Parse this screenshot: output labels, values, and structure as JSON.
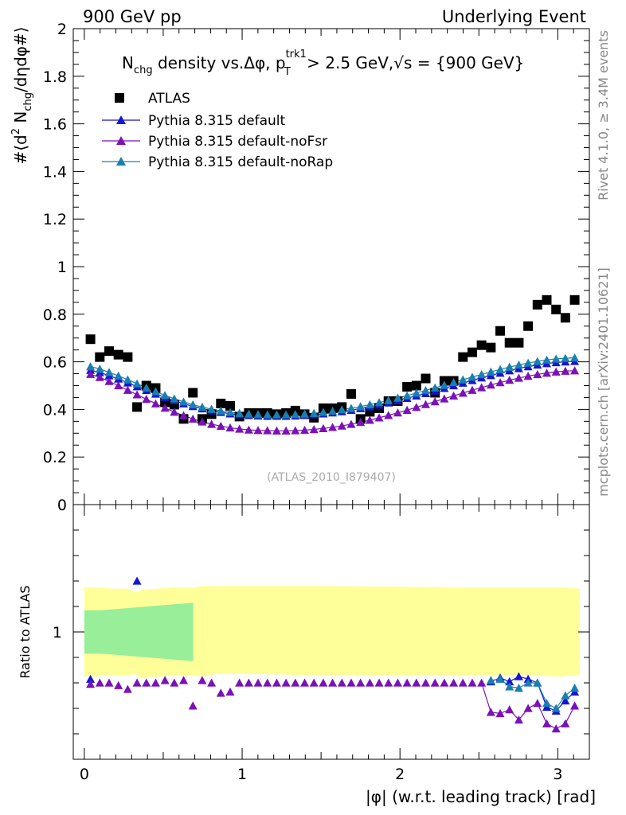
{
  "header": {
    "left": "900 GeV pp",
    "right": "Underlying Event"
  },
  "side_labels": {
    "rivet": "Rivet 4.1.0, ≥ 3.4M events",
    "mcplots": "mcplots.cern.ch [arXiv:2401.10621]"
  },
  "watermark": "(ATLAS_2010_I879407)",
  "chart_data": [
    {
      "type": "scatter",
      "title": "N_chg density vs. Δφ, p_T^trk1 > 2.5 GeV, √s = {900 GeV}",
      "title_parts": {
        "n": "N",
        "chg": "chg",
        "mid": " density vs.",
        "dphi": "Δφ",
        "comma": ", p",
        "sup": "trk1",
        "sub": "T",
        "cut": " > 2.5 GeV,",
        "sqrt": "√",
        "s_eq": "s = {900 GeV}"
      },
      "ylabel": "#⟨d² N_chg/dηdφ#⟩",
      "ylabel_parts": {
        "a": "#⟨d",
        "sup2": "2",
        "b": " N",
        "chg": "chg",
        "c": "/dηdφ#⟩"
      },
      "ylim": [
        0,
        2
      ],
      "yticks": [
        0,
        0.2,
        0.4,
        0.6,
        0.8,
        1,
        1.2,
        1.4,
        1.6,
        1.8,
        2
      ],
      "ytick_labels": [
        "0",
        "0.2",
        "0.4",
        "0.6",
        "0.8",
        "1",
        "1.2",
        "1.4",
        "1.6",
        "1.8",
        "2"
      ],
      "xlim": [
        -0.07,
        3.2
      ],
      "xticks": [
        0,
        1,
        2,
        3
      ],
      "x": [
        0.039,
        0.098,
        0.157,
        0.216,
        0.275,
        0.334,
        0.393,
        0.452,
        0.511,
        0.57,
        0.629,
        0.688,
        0.747,
        0.806,
        0.865,
        0.924,
        0.983,
        1.042,
        1.101,
        1.16,
        1.219,
        1.278,
        1.337,
        1.396,
        1.455,
        1.514,
        1.573,
        1.632,
        1.691,
        1.75,
        1.809,
        1.868,
        1.927,
        1.986,
        2.045,
        2.104,
        2.163,
        2.222,
        2.281,
        2.34,
        2.399,
        2.458,
        2.517,
        2.576,
        2.635,
        2.694,
        2.753,
        2.812,
        2.871,
        2.93,
        2.989,
        3.048,
        3.107
      ],
      "legend": [
        "ATLAS",
        "Pythia 8.315 default",
        "Pythia 8.315 default-noFsr",
        "Pythia 8.315 default-noRap"
      ],
      "series": [
        {
          "name": "ATLAS",
          "color": "#000000",
          "marker": "square",
          "values": [
            0.695,
            0.62,
            0.645,
            0.63,
            0.62,
            0.41,
            0.5,
            0.49,
            0.43,
            0.42,
            0.36,
            0.47,
            0.36,
            0.38,
            0.425,
            0.415,
            0.37,
            0.385,
            0.385,
            0.385,
            0.38,
            0.385,
            0.395,
            0.38,
            0.365,
            0.405,
            0.405,
            0.41,
            0.465,
            0.36,
            0.39,
            0.405,
            0.435,
            0.435,
            0.495,
            0.5,
            0.53,
            0.47,
            0.52,
            0.52,
            0.62,
            0.64,
            0.67,
            0.66,
            0.73,
            0.68,
            0.68,
            0.75,
            0.84,
            0.86,
            0.82,
            0.785,
            0.86
          ]
        },
        {
          "name": "Pythia 8.315 default",
          "color": "#1515d2",
          "marker": "triangle",
          "values": [
            0.565,
            0.555,
            0.542,
            0.528,
            0.512,
            0.496,
            0.48,
            0.465,
            0.45,
            0.437,
            0.424,
            0.413,
            0.403,
            0.395,
            0.388,
            0.382,
            0.378,
            0.375,
            0.373,
            0.372,
            0.372,
            0.372,
            0.373,
            0.375,
            0.378,
            0.382,
            0.386,
            0.391,
            0.397,
            0.404,
            0.411,
            0.419,
            0.428,
            0.437,
            0.447,
            0.457,
            0.467,
            0.478,
            0.489,
            0.5,
            0.511,
            0.522,
            0.533,
            0.543,
            0.553,
            0.563,
            0.572,
            0.58,
            0.587,
            0.593,
            0.597,
            0.6,
            0.602
          ]
        },
        {
          "name": "Pythia 8.315 default-noFsr",
          "color": "#7a12b8",
          "marker": "triangle",
          "values": [
            0.548,
            0.535,
            0.518,
            0.5,
            0.481,
            0.462,
            0.443,
            0.424,
            0.406,
            0.389,
            0.374,
            0.36,
            0.348,
            0.338,
            0.33,
            0.323,
            0.318,
            0.314,
            0.312,
            0.311,
            0.31,
            0.31,
            0.311,
            0.313,
            0.316,
            0.32,
            0.325,
            0.331,
            0.338,
            0.346,
            0.355,
            0.365,
            0.375,
            0.386,
            0.397,
            0.409,
            0.421,
            0.433,
            0.445,
            0.457,
            0.469,
            0.481,
            0.492,
            0.503,
            0.513,
            0.523,
            0.532,
            0.54,
            0.547,
            0.553,
            0.558,
            0.561,
            0.563
          ]
        },
        {
          "name": "Pythia 8.315 default-noRap",
          "color": "#1a7fb0",
          "marker": "triangle",
          "values": [
            0.58,
            0.57,
            0.556,
            0.541,
            0.525,
            0.508,
            0.491,
            0.475,
            0.459,
            0.445,
            0.432,
            0.42,
            0.41,
            0.401,
            0.394,
            0.388,
            0.384,
            0.381,
            0.379,
            0.378,
            0.378,
            0.378,
            0.379,
            0.381,
            0.384,
            0.388,
            0.393,
            0.399,
            0.405,
            0.412,
            0.42,
            0.429,
            0.438,
            0.448,
            0.458,
            0.469,
            0.48,
            0.491,
            0.502,
            0.514,
            0.525,
            0.536,
            0.547,
            0.558,
            0.568,
            0.578,
            0.587,
            0.595,
            0.602,
            0.608,
            0.612,
            0.615,
            0.617
          ]
        }
      ]
    },
    {
      "type": "scatter",
      "title": "",
      "ylabel": "Ratio to ATLAS",
      "xlabel": "|φ| (w.r.t. leading track) [rad]",
      "ylim": [
        0.5,
        1.5
      ],
      "yticks": [
        1
      ],
      "ytick_labels": [
        "1"
      ],
      "xlim": [
        -0.07,
        3.2
      ],
      "xticks": [
        0,
        1,
        2,
        3
      ],
      "xtick_labels": [
        "0",
        "1",
        "2",
        "3"
      ],
      "bands": [
        {
          "name": "ATLAS total uncertainty",
          "color": "#ffff99",
          "x": [
            0.0,
            0.04,
            0.08,
            0.16,
            0.28,
            0.32,
            0.36,
            0.45,
            0.6,
            0.7,
            0.75,
            0.83,
            1.0,
            1.5,
            2.0,
            2.5,
            2.8,
            3.0,
            3.14
          ],
          "lo": [
            0.825,
            0.825,
            0.825,
            0.83,
            0.83,
            0.835,
            0.82,
            0.825,
            0.83,
            0.83,
            0.825,
            0.835,
            0.835,
            0.83,
            0.83,
            0.83,
            0.83,
            0.825,
            0.83
          ],
          "hi": [
            1.175,
            1.175,
            1.175,
            1.17,
            1.17,
            1.155,
            1.165,
            1.17,
            1.175,
            1.175,
            1.18,
            1.18,
            1.18,
            1.18,
            1.178,
            1.175,
            1.175,
            1.175,
            1.17
          ]
        },
        {
          "name": "ATLAS statistical uncertainty",
          "color": "#99ee99",
          "x": [
            0.0,
            0.1,
            0.2,
            0.3,
            0.4,
            0.5,
            0.6,
            0.69
          ],
          "lo": [
            0.915,
            0.915,
            0.91,
            0.905,
            0.9,
            0.895,
            0.89,
            0.885
          ],
          "hi": [
            1.085,
            1.085,
            1.09,
            1.095,
            1.1,
            1.105,
            1.11,
            1.115
          ]
        }
      ],
      "series": [
        {
          "name": "Pythia 8.315 default / ATLAS",
          "color": "#1515d2",
          "x": [
            0.039,
            0.334,
            2.576,
            2.635,
            2.694,
            2.753,
            2.812,
            2.871,
            2.93,
            2.989,
            3.048,
            3.107
          ],
          "values": [
            0.815,
            1.2,
            0.805,
            0.82,
            0.805,
            0.825,
            0.815,
            0.8,
            0.705,
            0.69,
            0.73,
            0.765
          ]
        },
        {
          "name": "Pythia 8.315 default-noFsr / ATLAS",
          "color": "#7a12b8",
          "x": [
            0.039,
            0.098,
            0.157,
            0.216,
            0.275,
            0.334,
            0.393,
            0.452,
            0.511,
            0.57,
            0.629,
            0.688,
            0.747,
            0.806,
            0.865,
            0.924,
            0.983,
            1.042,
            1.101,
            1.16,
            1.219,
            1.278,
            1.337,
            1.396,
            1.455,
            1.514,
            1.573,
            1.632,
            1.691,
            1.75,
            1.809,
            1.868,
            1.927,
            1.986,
            2.045,
            2.104,
            2.163,
            2.222,
            2.281,
            2.34,
            2.399,
            2.458,
            2.517,
            2.576,
            2.635,
            2.694,
            2.753,
            2.812,
            2.871,
            2.93,
            2.989,
            3.048,
            3.107
          ],
          "values": [
            0.795,
            0.8,
            0.8,
            0.79,
            0.775,
            0.8,
            0.8,
            0.8,
            0.81,
            0.8,
            0.81,
            0.71,
            0.81,
            0.8,
            0.76,
            0.765,
            0.8,
            0.8,
            0.8,
            0.8,
            0.8,
            0.8,
            0.8,
            0.8,
            0.8,
            0.8,
            0.8,
            0.8,
            0.8,
            0.8,
            0.8,
            0.8,
            0.8,
            0.8,
            0.8,
            0.8,
            0.8,
            0.8,
            0.8,
            0.8,
            0.8,
            0.8,
            0.8,
            0.685,
            0.68,
            0.695,
            0.655,
            0.7,
            0.72,
            0.64,
            0.62,
            0.64,
            0.71
          ]
        },
        {
          "name": "Pythia 8.315 default-noRap / ATLAS",
          "color": "#1a7fb0",
          "x": [
            2.576,
            2.635,
            2.694,
            2.753,
            2.812,
            2.871,
            2.93,
            2.989,
            3.048,
            3.107
          ],
          "values": [
            0.81,
            0.815,
            0.785,
            0.78,
            0.8,
            0.8,
            0.72,
            0.7,
            0.75,
            0.78
          ]
        }
      ]
    }
  ]
}
